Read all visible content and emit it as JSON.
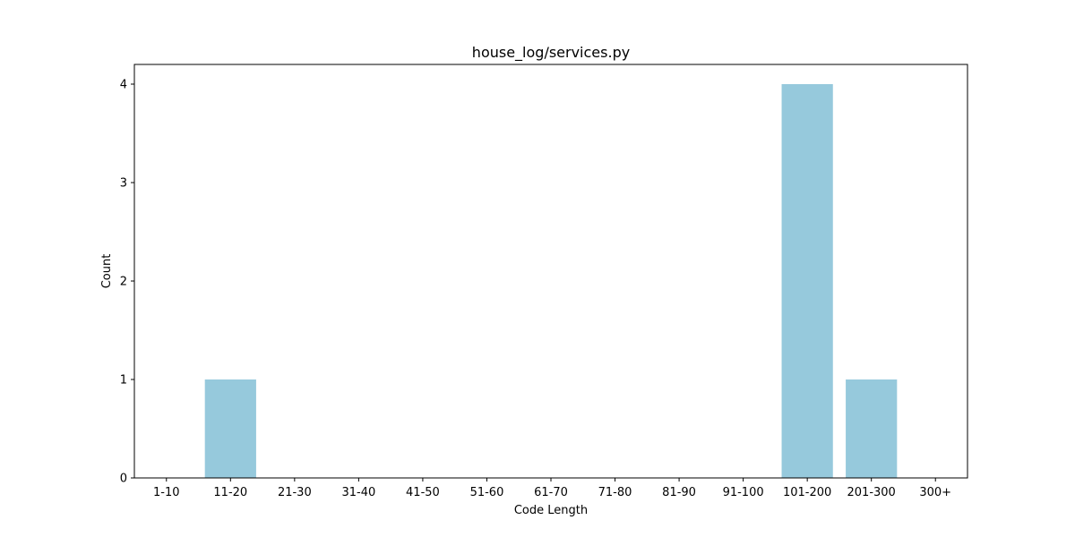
{
  "chart_data": {
    "type": "bar",
    "title": "house_log/services.py",
    "xlabel": "Code Length",
    "ylabel": "Count",
    "categories": [
      "1-10",
      "11-20",
      "21-30",
      "31-40",
      "41-50",
      "51-60",
      "61-70",
      "71-80",
      "81-90",
      "91-100",
      "101-200",
      "201-300",
      "300+"
    ],
    "values": [
      0,
      1,
      0,
      0,
      0,
      0,
      0,
      0,
      0,
      0,
      4,
      1,
      0
    ],
    "ylim": [
      0,
      4.2
    ],
    "yticks": [
      0,
      1,
      2,
      3,
      4
    ],
    "bar_color": "#96c9dc",
    "grid": false,
    "legend": "none"
  }
}
